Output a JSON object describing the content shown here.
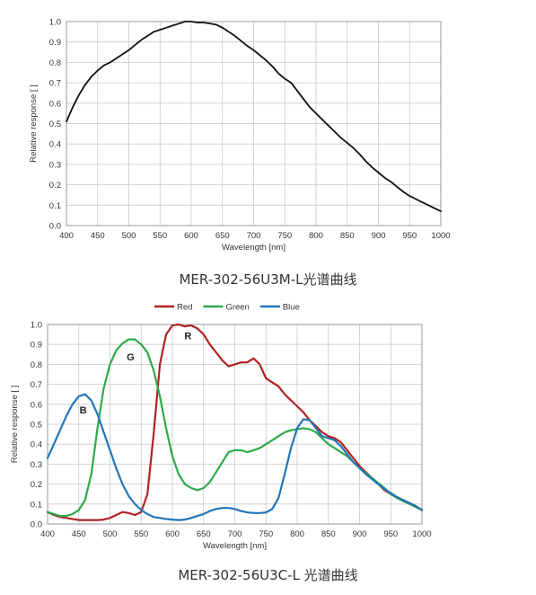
{
  "chart_data": [
    {
      "type": "line",
      "title": "",
      "xlabel": "Wavelength [nm]",
      "ylabel": "Relative response [ ]",
      "xlim": [
        400,
        1000
      ],
      "ylim": [
        0,
        1.0
      ],
      "x_ticks": [
        "400",
        "450",
        "500",
        "550",
        "600",
        "650",
        "700",
        "750",
        "800",
        "850",
        "900",
        "950",
        "1000"
      ],
      "y_ticks": [
        "0.0",
        "0.1",
        "0.2",
        "0.3",
        "0.4",
        "0.5",
        "0.6",
        "0.7",
        "0.8",
        "0.9",
        "1.0"
      ],
      "grid": true,
      "series": [
        {
          "color": "#111111",
          "points": [
            [
              400,
              0.51
            ],
            [
              410,
              0.58
            ],
            [
              420,
              0.64
            ],
            [
              430,
              0.69
            ],
            [
              440,
              0.73
            ],
            [
              450,
              0.76
            ],
            [
              460,
              0.785
            ],
            [
              470,
              0.8
            ],
            [
              480,
              0.82
            ],
            [
              490,
              0.84
            ],
            [
              500,
              0.86
            ],
            [
              510,
              0.885
            ],
            [
              520,
              0.91
            ],
            [
              530,
              0.93
            ],
            [
              540,
              0.95
            ],
            [
              550,
              0.96
            ],
            [
              560,
              0.97
            ],
            [
              570,
              0.98
            ],
            [
              580,
              0.99
            ],
            [
              590,
              1.0
            ],
            [
              600,
              1.0
            ],
            [
              610,
              0.995
            ],
            [
              620,
              0.995
            ],
            [
              630,
              0.99
            ],
            [
              640,
              0.985
            ],
            [
              650,
              0.97
            ],
            [
              660,
              0.95
            ],
            [
              670,
              0.93
            ],
            [
              680,
              0.905
            ],
            [
              690,
              0.88
            ],
            [
              700,
              0.86
            ],
            [
              710,
              0.835
            ],
            [
              720,
              0.81
            ],
            [
              730,
              0.78
            ],
            [
              740,
              0.745
            ],
            [
              750,
              0.72
            ],
            [
              760,
              0.7
            ],
            [
              770,
              0.66
            ],
            [
              780,
              0.62
            ],
            [
              790,
              0.58
            ],
            [
              800,
              0.55
            ],
            [
              810,
              0.52
            ],
            [
              820,
              0.49
            ],
            [
              830,
              0.46
            ],
            [
              840,
              0.43
            ],
            [
              850,
              0.405
            ],
            [
              860,
              0.38
            ],
            [
              870,
              0.35
            ],
            [
              880,
              0.315
            ],
            [
              890,
              0.285
            ],
            [
              900,
              0.26
            ],
            [
              910,
              0.235
            ],
            [
              920,
              0.215
            ],
            [
              930,
              0.19
            ],
            [
              940,
              0.165
            ],
            [
              950,
              0.145
            ],
            [
              960,
              0.13
            ],
            [
              970,
              0.115
            ],
            [
              980,
              0.1
            ],
            [
              990,
              0.085
            ],
            [
              1000,
              0.07
            ]
          ]
        }
      ],
      "caption": "MER-302-56U3M-L光谱曲线"
    },
    {
      "type": "line",
      "title": "",
      "xlabel": "Wavelength [nm]",
      "ylabel": "Relative response [ ]",
      "xlim": [
        400,
        1000
      ],
      "ylim": [
        0,
        1.0
      ],
      "x_ticks": [
        "400",
        "450",
        "500",
        "550",
        "600",
        "650",
        "700",
        "750",
        "800",
        "850",
        "900",
        "950",
        "1000"
      ],
      "y_ticks": [
        "0.0",
        "0.1",
        "0.2",
        "0.3",
        "0.4",
        "0.5",
        "0.6",
        "0.7",
        "0.8",
        "0.9",
        "1.0"
      ],
      "grid": true,
      "legend": {
        "placement": "top-center"
      },
      "series": [
        {
          "name": "Red",
          "color": "#b22222",
          "points": [
            [
              400,
              0.06
            ],
            [
              410,
              0.045
            ],
            [
              420,
              0.035
            ],
            [
              430,
              0.03
            ],
            [
              440,
              0.025
            ],
            [
              450,
              0.02
            ],
            [
              460,
              0.02
            ],
            [
              470,
              0.02
            ],
            [
              480,
              0.02
            ],
            [
              490,
              0.022
            ],
            [
              500,
              0.03
            ],
            [
              510,
              0.045
            ],
            [
              520,
              0.06
            ],
            [
              530,
              0.055
            ],
            [
              540,
              0.045
            ],
            [
              550,
              0.06
            ],
            [
              560,
              0.15
            ],
            [
              570,
              0.45
            ],
            [
              580,
              0.8
            ],
            [
              590,
              0.95
            ],
            [
              600,
              0.995
            ],
            [
              610,
              1.0
            ],
            [
              620,
              0.99
            ],
            [
              630,
              0.995
            ],
            [
              640,
              0.98
            ],
            [
              650,
              0.95
            ],
            [
              660,
              0.9
            ],
            [
              670,
              0.86
            ],
            [
              680,
              0.82
            ],
            [
              690,
              0.79
            ],
            [
              700,
              0.8
            ],
            [
              710,
              0.81
            ],
            [
              720,
              0.81
            ],
            [
              730,
              0.83
            ],
            [
              740,
              0.8
            ],
            [
              750,
              0.73
            ],
            [
              760,
              0.71
            ],
            [
              770,
              0.69
            ],
            [
              780,
              0.65
            ],
            [
              790,
              0.62
            ],
            [
              800,
              0.59
            ],
            [
              810,
              0.56
            ],
            [
              820,
              0.52
            ],
            [
              830,
              0.49
            ],
            [
              840,
              0.46
            ],
            [
              850,
              0.44
            ],
            [
              860,
              0.43
            ],
            [
              870,
              0.41
            ],
            [
              880,
              0.37
            ],
            [
              890,
              0.33
            ],
            [
              900,
              0.29
            ],
            [
              910,
              0.26
            ],
            [
              920,
              0.23
            ],
            [
              930,
              0.2
            ],
            [
              940,
              0.17
            ],
            [
              950,
              0.15
            ],
            [
              960,
              0.13
            ],
            [
              970,
              0.12
            ],
            [
              980,
              0.105
            ],
            [
              990,
              0.09
            ],
            [
              1000,
              0.07
            ]
          ]
        },
        {
          "name": "Green",
          "color": "#2eaa4a",
          "points": [
            [
              400,
              0.06
            ],
            [
              410,
              0.05
            ],
            [
              420,
              0.04
            ],
            [
              430,
              0.04
            ],
            [
              440,
              0.05
            ],
            [
              450,
              0.07
            ],
            [
              460,
              0.12
            ],
            [
              470,
              0.25
            ],
            [
              480,
              0.48
            ],
            [
              490,
              0.68
            ],
            [
              500,
              0.8
            ],
            [
              510,
              0.87
            ],
            [
              520,
              0.905
            ],
            [
              530,
              0.925
            ],
            [
              540,
              0.925
            ],
            [
              550,
              0.9
            ],
            [
              560,
              0.86
            ],
            [
              570,
              0.77
            ],
            [
              580,
              0.64
            ],
            [
              590,
              0.48
            ],
            [
              600,
              0.34
            ],
            [
              610,
              0.25
            ],
            [
              620,
              0.2
            ],
            [
              630,
              0.18
            ],
            [
              640,
              0.17
            ],
            [
              650,
              0.18
            ],
            [
              660,
              0.21
            ],
            [
              670,
              0.26
            ],
            [
              680,
              0.31
            ],
            [
              690,
              0.36
            ],
            [
              700,
              0.37
            ],
            [
              710,
              0.37
            ],
            [
              720,
              0.36
            ],
            [
              730,
              0.37
            ],
            [
              740,
              0.38
            ],
            [
              750,
              0.4
            ],
            [
              760,
              0.42
            ],
            [
              770,
              0.44
            ],
            [
              780,
              0.46
            ],
            [
              790,
              0.47
            ],
            [
              800,
              0.475
            ],
            [
              810,
              0.48
            ],
            [
              820,
              0.475
            ],
            [
              830,
              0.46
            ],
            [
              840,
              0.43
            ],
            [
              850,
              0.4
            ],
            [
              860,
              0.38
            ],
            [
              870,
              0.36
            ],
            [
              880,
              0.34
            ],
            [
              890,
              0.31
            ],
            [
              900,
              0.28
            ],
            [
              910,
              0.255
            ],
            [
              920,
              0.23
            ],
            [
              930,
              0.205
            ],
            [
              940,
              0.18
            ],
            [
              950,
              0.15
            ],
            [
              960,
              0.13
            ],
            [
              970,
              0.115
            ],
            [
              980,
              0.1
            ],
            [
              990,
              0.085
            ],
            [
              1000,
              0.07
            ]
          ]
        },
        {
          "name": "Blue",
          "color": "#2276b9",
          "points": [
            [
              400,
              0.33
            ],
            [
              410,
              0.4
            ],
            [
              420,
              0.47
            ],
            [
              430,
              0.54
            ],
            [
              440,
              0.6
            ],
            [
              450,
              0.64
            ],
            [
              460,
              0.65
            ],
            [
              470,
              0.62
            ],
            [
              480,
              0.55
            ],
            [
              490,
              0.46
            ],
            [
              500,
              0.37
            ],
            [
              510,
              0.28
            ],
            [
              520,
              0.2
            ],
            [
              530,
              0.14
            ],
            [
              540,
              0.1
            ],
            [
              550,
              0.07
            ],
            [
              560,
              0.05
            ],
            [
              570,
              0.035
            ],
            [
              580,
              0.03
            ],
            [
              590,
              0.025
            ],
            [
              600,
              0.022
            ],
            [
              610,
              0.02
            ],
            [
              620,
              0.022
            ],
            [
              630,
              0.03
            ],
            [
              640,
              0.04
            ],
            [
              650,
              0.05
            ],
            [
              660,
              0.065
            ],
            [
              670,
              0.075
            ],
            [
              680,
              0.08
            ],
            [
              690,
              0.08
            ],
            [
              700,
              0.075
            ],
            [
              710,
              0.065
            ],
            [
              720,
              0.058
            ],
            [
              730,
              0.055
            ],
            [
              740,
              0.055
            ],
            [
              750,
              0.058
            ],
            [
              760,
              0.075
            ],
            [
              770,
              0.13
            ],
            [
              780,
              0.25
            ],
            [
              790,
              0.38
            ],
            [
              800,
              0.48
            ],
            [
              810,
              0.525
            ],
            [
              820,
              0.52
            ],
            [
              830,
              0.48
            ],
            [
              840,
              0.44
            ],
            [
              850,
              0.43
            ],
            [
              860,
              0.42
            ],
            [
              870,
              0.39
            ],
            [
              880,
              0.35
            ],
            [
              890,
              0.31
            ],
            [
              900,
              0.28
            ],
            [
              910,
              0.25
            ],
            [
              920,
              0.225
            ],
            [
              930,
              0.2
            ],
            [
              940,
              0.175
            ],
            [
              950,
              0.155
            ],
            [
              960,
              0.135
            ],
            [
              970,
              0.12
            ],
            [
              980,
              0.105
            ],
            [
              990,
              0.09
            ],
            [
              1000,
              0.07
            ]
          ]
        }
      ],
      "annotations": [
        {
          "text": "R",
          "x": 625,
          "y": 0.925
        },
        {
          "text": "G",
          "x": 533,
          "y": 0.82
        },
        {
          "text": "B",
          "x": 457,
          "y": 0.555
        }
      ],
      "caption": "MER-302-56U3C-L 光谱曲线"
    }
  ]
}
